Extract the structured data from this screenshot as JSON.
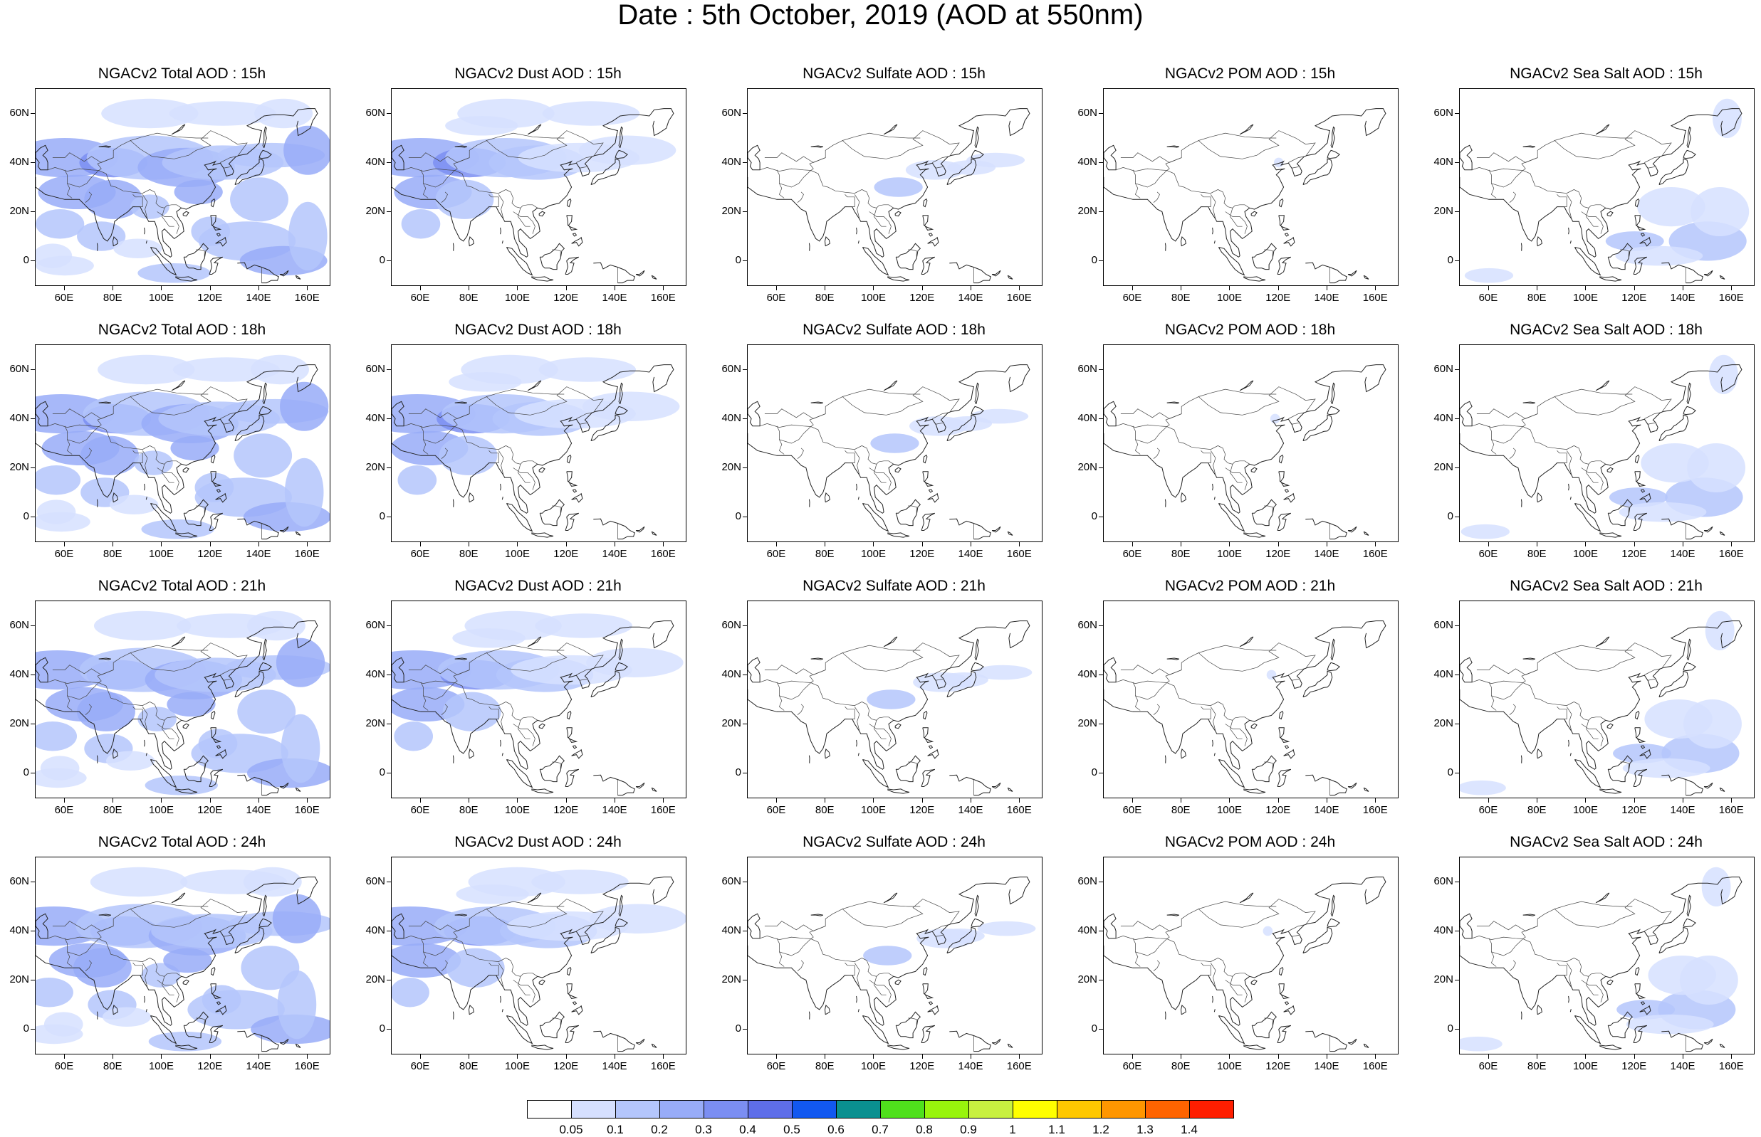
{
  "title": "Date : 5th October, 2019 (AOD at 550nm)",
  "hours": [
    "15h",
    "18h",
    "21h",
    "24h"
  ],
  "panels": [
    {
      "row": 0,
      "col": 0,
      "title": "NGACv2 Total AOD : 15h",
      "species": "total"
    },
    {
      "row": 0,
      "col": 1,
      "title": "NGACv2 Dust AOD : 15h",
      "species": "dust"
    },
    {
      "row": 0,
      "col": 2,
      "title": "NGACv2 Sulfate AOD : 15h",
      "species": "sulfate"
    },
    {
      "row": 0,
      "col": 3,
      "title": "NGACv2 POM AOD : 15h",
      "species": "pom"
    },
    {
      "row": 0,
      "col": 4,
      "title": "NGACv2 Sea Salt AOD : 15h",
      "species": "seasalt"
    },
    {
      "row": 1,
      "col": 0,
      "title": "NGACv2 Total AOD : 18h",
      "species": "total"
    },
    {
      "row": 1,
      "col": 1,
      "title": "NGACv2 Dust AOD : 18h",
      "species": "dust"
    },
    {
      "row": 1,
      "col": 2,
      "title": "NGACv2 Sulfate AOD : 18h",
      "species": "sulfate"
    },
    {
      "row": 1,
      "col": 3,
      "title": "NGACv2 POM AOD : 18h",
      "species": "pom"
    },
    {
      "row": 1,
      "col": 4,
      "title": "NGACv2 Sea Salt AOD : 18h",
      "species": "seasalt"
    },
    {
      "row": 2,
      "col": 0,
      "title": "NGACv2 Total AOD : 21h",
      "species": "total"
    },
    {
      "row": 2,
      "col": 1,
      "title": "NGACv2 Dust AOD : 21h",
      "species": "dust"
    },
    {
      "row": 2,
      "col": 2,
      "title": "NGACv2 Sulfate AOD : 21h",
      "species": "sulfate"
    },
    {
      "row": 2,
      "col": 3,
      "title": "NGACv2 POM AOD : 21h",
      "species": "pom"
    },
    {
      "row": 2,
      "col": 4,
      "title": "NGACv2 Sea Salt AOD : 21h",
      "species": "seasalt"
    },
    {
      "row": 3,
      "col": 0,
      "title": "NGACv2 Total AOD : 24h",
      "species": "total"
    },
    {
      "row": 3,
      "col": 1,
      "title": "NGACv2 Dust AOD : 24h",
      "species": "dust"
    },
    {
      "row": 3,
      "col": 2,
      "title": "NGACv2 Sulfate AOD : 24h",
      "species": "sulfate"
    },
    {
      "row": 3,
      "col": 3,
      "title": "NGACv2 POM AOD : 24h",
      "species": "pom"
    },
    {
      "row": 3,
      "col": 4,
      "title": "NGACv2 Sea Salt  AOD : 24h",
      "species": "seasalt"
    }
  ],
  "axes": {
    "lat_labels": [
      "60N",
      "40N",
      "20N",
      "0"
    ],
    "lon_labels": [
      "60E",
      "80E",
      "100E",
      "120E",
      "140E",
      "160E"
    ],
    "lat_values": [
      60,
      40,
      20,
      0
    ],
    "lon_values": [
      60,
      80,
      100,
      120,
      140,
      160
    ],
    "lon_range": [
      48,
      169
    ],
    "lat_range": [
      -10,
      70
    ]
  },
  "colorbar": {
    "labels": [
      "0.05",
      "0.1",
      "0.2",
      "0.3",
      "0.4",
      "0.5",
      "0.6",
      "0.7",
      "0.8",
      "0.9",
      "1",
      "1.1",
      "1.2",
      "1.3",
      "1.4"
    ],
    "colors": [
      "#ffffff",
      "#d6e0ff",
      "#b4c6fc",
      "#98acf8",
      "#7b8ef2",
      "#5e6ee8",
      "#1258f0",
      "#0a9090",
      "#4fe01c",
      "#98f40c",
      "#c8f040",
      "#ffff00",
      "#ffc800",
      "#ff9600",
      "#ff6400",
      "#ff1e00"
    ]
  }
}
